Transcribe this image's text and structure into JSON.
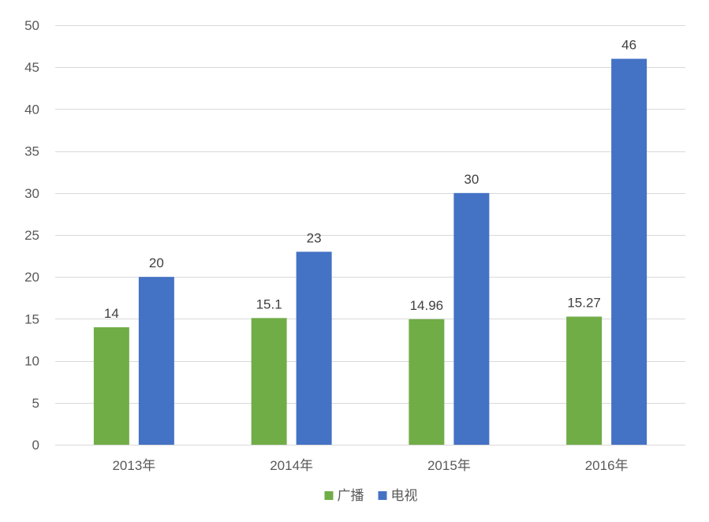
{
  "chart_data": {
    "type": "bar",
    "title": "",
    "xlabel": "",
    "ylabel": "",
    "categories": [
      "2013年",
      "2014年",
      "2015年",
      "2016年"
    ],
    "series": [
      {
        "name": "广播",
        "values": [
          14,
          15.1,
          14.96,
          15.27
        ],
        "color": "#70ad47"
      },
      {
        "name": "电视",
        "values": [
          20,
          23,
          30,
          46
        ],
        "color": "#4472c4"
      }
    ],
    "data_labels": [
      [
        "14",
        "15.1",
        "14.96",
        "15.27"
      ],
      [
        "20",
        "23",
        "30",
        "46"
      ]
    ],
    "ylim": [
      0,
      50
    ],
    "y_ticks": [
      0,
      5,
      10,
      15,
      20,
      25,
      30,
      35,
      40,
      45,
      50
    ],
    "y_tick_labels": [
      "0",
      "5",
      "10",
      "15",
      "20",
      "25",
      "30",
      "35",
      "40",
      "45",
      "50"
    ],
    "grid": true,
    "gridline_color": "#d9d9d9",
    "legend": {
      "position": "bottom",
      "entries": [
        "广播",
        "电视"
      ]
    }
  }
}
